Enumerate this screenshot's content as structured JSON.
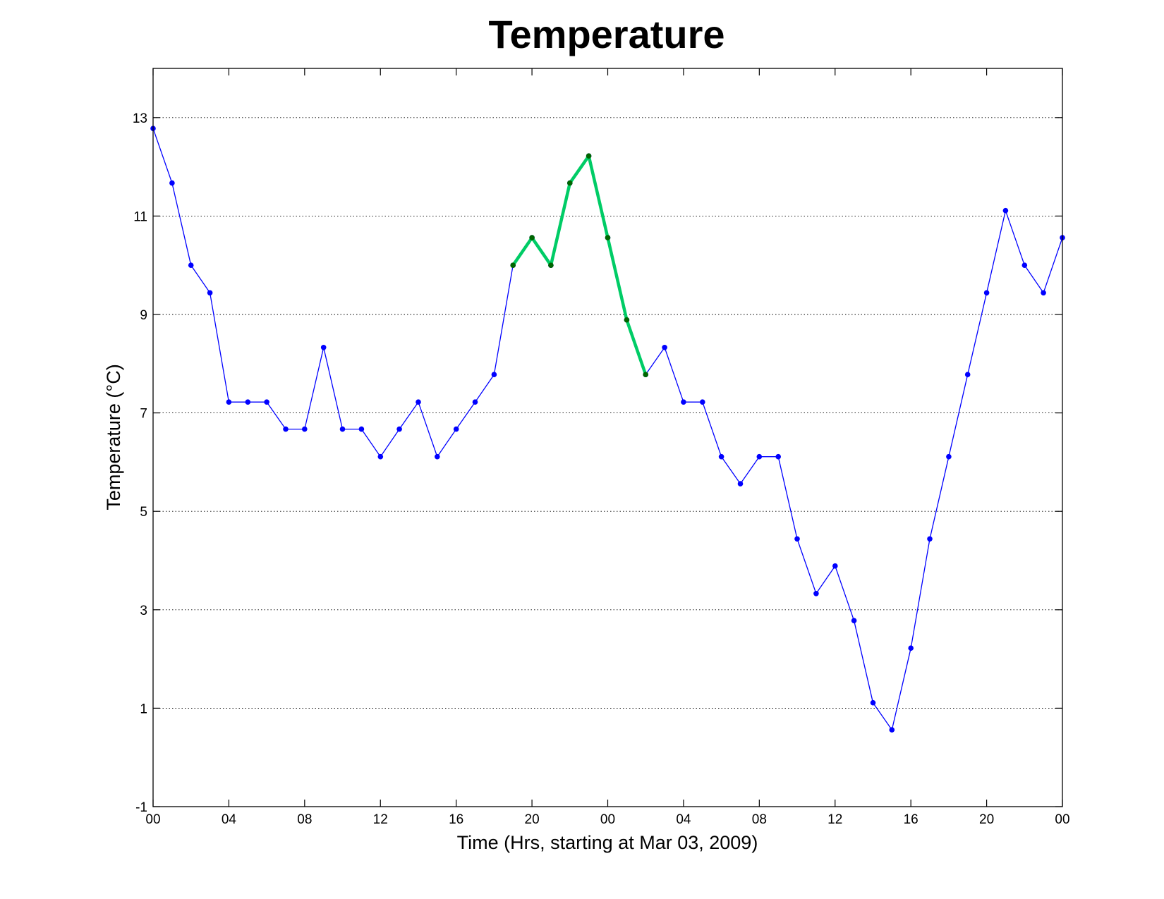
{
  "chart_data": {
    "type": "line",
    "title": "Temperature",
    "xlabel": "Time (Hrs, starting at Mar 03, 2009)",
    "ylabel": "Temperature (°C)",
    "ylim": [
      -1,
      14
    ],
    "xlim": [
      0,
      48
    ],
    "yticks": [
      -1,
      1,
      3,
      5,
      7,
      9,
      11,
      13
    ],
    "xticks": [
      {
        "x": 0,
        "label": "00"
      },
      {
        "x": 4,
        "label": "04"
      },
      {
        "x": 8,
        "label": "08"
      },
      {
        "x": 12,
        "label": "12"
      },
      {
        "x": 16,
        "label": "16"
      },
      {
        "x": 20,
        "label": "20"
      },
      {
        "x": 24,
        "label": "00"
      },
      {
        "x": 28,
        "label": "04"
      },
      {
        "x": 32,
        "label": "08"
      },
      {
        "x": 36,
        "label": "12"
      },
      {
        "x": 40,
        "label": "16"
      },
      {
        "x": 44,
        "label": "20"
      },
      {
        "x": 48,
        "label": "00"
      }
    ],
    "grid": "horizontal-dotted",
    "series": [
      {
        "color": "#0000ff",
        "x": [
          0,
          1,
          2,
          3,
          4,
          5,
          6,
          7,
          8,
          9,
          10,
          11,
          12,
          13,
          14,
          15,
          16,
          17,
          18,
          19,
          20,
          21,
          22,
          23,
          24,
          25,
          26,
          27,
          28,
          29,
          30,
          31,
          32,
          33,
          34,
          35,
          36,
          37,
          38,
          39,
          40,
          41,
          42,
          43,
          44,
          45,
          46,
          47,
          48
        ],
        "values": [
          12.78,
          11.67,
          10.0,
          9.44,
          7.22,
          7.22,
          7.22,
          6.67,
          6.67,
          8.33,
          6.67,
          6.67,
          6.11,
          6.67,
          7.22,
          6.11,
          6.67,
          7.22,
          7.78,
          10.0,
          10.56,
          10.0,
          11.67,
          12.22,
          10.56,
          8.89,
          7.78,
          8.33,
          7.22,
          7.22,
          6.11,
          5.56,
          6.11,
          6.11,
          4.44,
          3.33,
          3.89,
          2.78,
          1.11,
          0.56,
          2.22,
          4.44,
          6.11,
          7.78,
          9.44,
          11.11,
          10.0,
          9.44,
          10.56
        ]
      },
      {
        "color": "#00cc66",
        "marker_color": "#006600",
        "x": [
          19,
          20,
          21,
          22,
          23,
          24,
          25,
          26
        ],
        "values": [
          10.0,
          10.56,
          10.0,
          11.67,
          12.22,
          10.56,
          8.89,
          7.78
        ]
      }
    ]
  }
}
